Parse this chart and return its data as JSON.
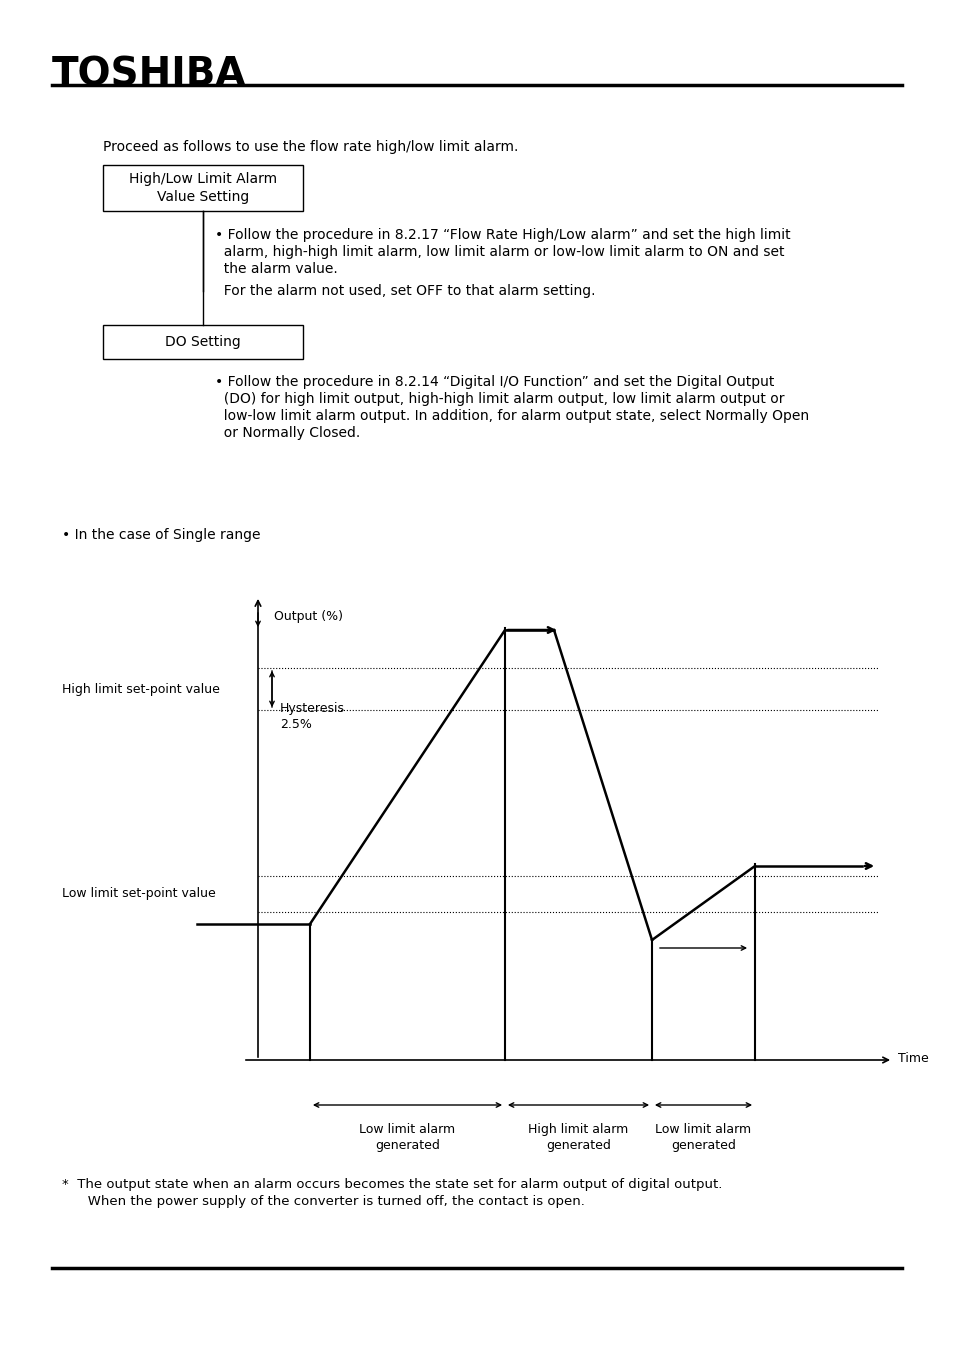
{
  "bg_color": "#ffffff",
  "text_color": "#000000",
  "toshiba_label": "TOSHIBA",
  "intro_text": "Proceed as follows to use the flow rate high/low limit alarm.",
  "box1_text": "High/Low Limit Alarm\nValue Setting",
  "box1_bullet_lines": [
    "• Follow the procedure in 8.2.17 “Flow Rate High/Low alarm” and set the high limit",
    "  alarm, high-high limit alarm, low limit alarm or low-low limit alarm to ON and set",
    "  the alarm value."
  ],
  "box1_note": "  For the alarm not used, set OFF to that alarm setting.",
  "box2_text": "DO Setting",
  "box2_bullet_lines": [
    "• Follow the procedure in 8.2.14 “Digital I/O Function” and set the Digital Output",
    "  (DO) for high limit output, high-high limit alarm output, low limit alarm output or",
    "  low-low limit alarm output. In addition, for alarm output state, select Normally Open",
    "  or Normally Closed."
  ],
  "single_range_label": "• In the case of Single range",
  "output_label": "Output (%)",
  "time_label": "Time",
  "high_limit_label": "High limit set-point value",
  "low_limit_label": "Low limit set-point value",
  "hysteresis_label": "Hysteresis\n2.5%",
  "alarm_label_1": "Low limit alarm\ngenerated",
  "alarm_label_2": "High limit alarm\ngenerated",
  "alarm_label_3": "Low limit alarm\ngenerated",
  "footnote_line1": "*  The output state when an alarm occurs becomes the state set for alarm output of digital output.",
  "footnote_line2": "   When the power supply of the converter is turned off, the contact is open."
}
